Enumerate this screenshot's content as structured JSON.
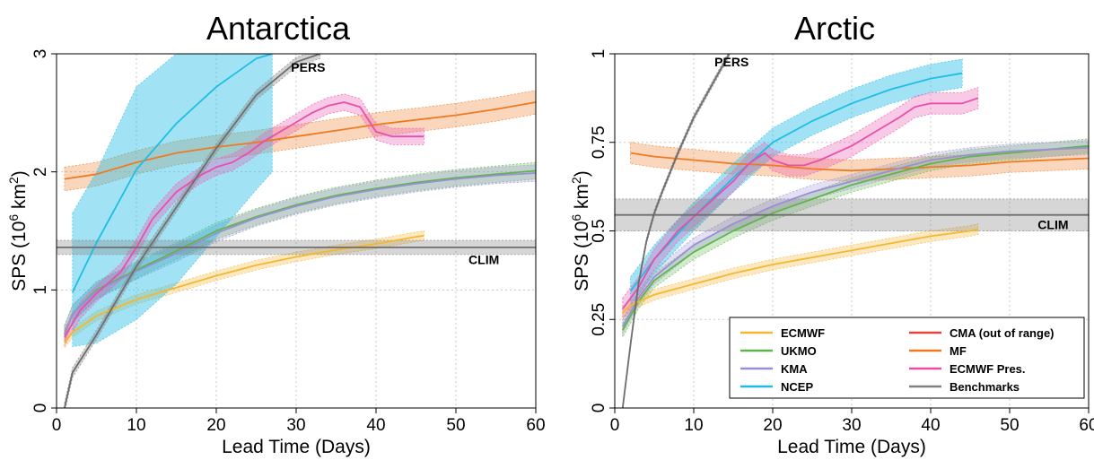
{
  "figure": {
    "xlabel": "Lead Time (Days)"
  },
  "colors": {
    "ECMWF": "#f5b731",
    "UKMO": "#5db64a",
    "KMA": "#9a8fd6",
    "NCEP": "#1fbde6",
    "CMA": "#e8423c",
    "MF": "#ef7a22",
    "ECMWF Pres.": "#ea4eac",
    "Benchmarks": "#808080"
  },
  "legend": {
    "entries": [
      {
        "label": "ECMWF",
        "color": "#f5b731"
      },
      {
        "label": "UKMO",
        "color": "#5db64a"
      },
      {
        "label": "KMA",
        "color": "#9a8fd6"
      },
      {
        "label": "NCEP",
        "color": "#1fbde6"
      },
      {
        "label": "CMA (out of range)",
        "color": "#e8423c"
      },
      {
        "label": "MF",
        "color": "#ef7a22"
      },
      {
        "label": "ECMWF Pres.",
        "color": "#ea4eac"
      },
      {
        "label": "Benchmarks",
        "color": "#808080"
      }
    ]
  },
  "chart_data": [
    {
      "type": "line",
      "title": "Antarctica",
      "xlabel": "Lead Time (Days)",
      "ylabel": "SPS (10^6 km^2)",
      "ylabel_parts": {
        "pre": "SPS (10",
        "exp": "6",
        "mid": " km",
        "exp2": "2",
        "post": ")"
      },
      "xlim": [
        0,
        60
      ],
      "ylim": [
        0,
        3
      ],
      "xticks": [
        0,
        10,
        20,
        30,
        40,
        50,
        60
      ],
      "xtick_labels": [
        "0",
        "10",
        "20",
        "30",
        "40",
        "50",
        "60"
      ],
      "yticks": [
        0,
        1,
        2,
        3
      ],
      "ytick_labels": [
        "0",
        "1",
        "2",
        "3"
      ],
      "grid": true,
      "annotations": [
        {
          "text": "PERS",
          "x": 31.5,
          "y": 2.85
        },
        {
          "text": "CLIM",
          "x": 53.5,
          "y": 1.22
        }
      ],
      "series": [
        {
          "name": "MF",
          "x": [
            1,
            5,
            10,
            15,
            20,
            25,
            30,
            35,
            40,
            45,
            50,
            55,
            60
          ],
          "y": [
            1.94,
            1.98,
            2.08,
            2.16,
            2.21,
            2.25,
            2.3,
            2.35,
            2.4,
            2.44,
            2.48,
            2.53,
            2.59
          ],
          "band": 0.1
        },
        {
          "name": "UKMO",
          "x": [
            1,
            2,
            5,
            10,
            15,
            20,
            25,
            30,
            35,
            40,
            45,
            50,
            55,
            60
          ],
          "y": [
            0.63,
            0.8,
            1.0,
            1.17,
            1.33,
            1.5,
            1.62,
            1.72,
            1.8,
            1.86,
            1.91,
            1.95,
            1.98,
            2.01
          ],
          "band": 0.07
        },
        {
          "name": "KMA",
          "x": [
            1,
            2,
            5,
            10,
            15,
            20,
            25,
            30,
            35,
            40,
            45,
            50,
            55,
            60
          ],
          "y": [
            0.62,
            0.8,
            0.99,
            1.16,
            1.31,
            1.48,
            1.61,
            1.71,
            1.79,
            1.85,
            1.9,
            1.94,
            1.97,
            1.99
          ],
          "band": 0.07
        },
        {
          "name": "ECMWF",
          "x": [
            1,
            2,
            5,
            10,
            15,
            20,
            25,
            30,
            35,
            40,
            45,
            46
          ],
          "y": [
            0.55,
            0.64,
            0.78,
            0.92,
            1.02,
            1.12,
            1.21,
            1.28,
            1.34,
            1.39,
            1.45,
            1.46
          ],
          "band": 0.04
        },
        {
          "name": "NCEP",
          "x": [
            2,
            5,
            10,
            15,
            20,
            25,
            27
          ],
          "y": [
            0.98,
            1.4,
            2.02,
            2.41,
            2.72,
            2.96,
            3.0
          ],
          "band_lo": [
            0.52,
            0.55,
            0.75,
            1.05,
            1.45,
            1.85,
            2.0
          ],
          "band_hi": [
            1.65,
            2.0,
            2.72,
            3.0,
            3.0,
            3.0,
            3.0
          ]
        },
        {
          "name": "ECMWF Pres.",
          "x": [
            1,
            3,
            5,
            8,
            10,
            12,
            15,
            18,
            20,
            22,
            24,
            26,
            28,
            30,
            32,
            34,
            36,
            38,
            40,
            42,
            44,
            46
          ],
          "y": [
            0.6,
            0.83,
            0.97,
            1.15,
            1.36,
            1.6,
            1.83,
            1.97,
            2.04,
            2.08,
            2.16,
            2.26,
            2.34,
            2.42,
            2.5,
            2.56,
            2.59,
            2.55,
            2.34,
            2.3,
            2.3,
            2.3
          ],
          "band": 0.07
        },
        {
          "name": "PERS",
          "x": [
            1,
            2,
            5,
            10,
            15,
            20,
            25,
            30,
            33
          ],
          "y": [
            0.0,
            0.3,
            0.62,
            1.2,
            1.7,
            2.2,
            2.65,
            2.93,
            3.0
          ],
          "band": 0.04
        },
        {
          "name": "CLIM",
          "x": [
            0,
            60
          ],
          "y": [
            1.36,
            1.36
          ],
          "band": 0.06
        }
      ]
    },
    {
      "type": "line",
      "title": "Arctic",
      "xlabel": "Lead Time (Days)",
      "ylabel": "SPS (10^6 km^2)",
      "ylabel_parts": {
        "pre": "SPS (10",
        "exp": "6",
        "mid": " km",
        "exp2": "2",
        "post": ")"
      },
      "xlim": [
        0,
        60
      ],
      "ylim": [
        0,
        1
      ],
      "xticks": [
        0,
        10,
        20,
        30,
        40,
        50,
        60
      ],
      "xtick_labels": [
        "0",
        "10",
        "20",
        "30",
        "40",
        "50",
        "60"
      ],
      "yticks": [
        0,
        0.25,
        0.5,
        0.75,
        1
      ],
      "ytick_labels": [
        "0",
        "0.25",
        "0.5",
        "0.75",
        "1"
      ],
      "grid": true,
      "legend_position": "bottom-right",
      "annotations": [
        {
          "text": "PERS",
          "x": 14.8,
          "y": 0.965
        },
        {
          "text": "CLIM",
          "x": 55.5,
          "y": 0.505
        }
      ],
      "series": [
        {
          "name": "MF",
          "x": [
            2,
            5,
            10,
            15,
            20,
            25,
            30,
            35,
            40,
            45,
            50,
            55,
            60
          ],
          "y": [
            0.72,
            0.71,
            0.7,
            0.69,
            0.685,
            0.675,
            0.67,
            0.675,
            0.68,
            0.685,
            0.695,
            0.7,
            0.705
          ],
          "band": 0.03
        },
        {
          "name": "UKMO",
          "x": [
            1,
            3,
            5,
            10,
            15,
            20,
            25,
            30,
            35,
            40,
            45,
            50,
            55,
            60
          ],
          "y": [
            0.22,
            0.3,
            0.36,
            0.44,
            0.5,
            0.55,
            0.59,
            0.63,
            0.66,
            0.69,
            0.71,
            0.72,
            0.73,
            0.74
          ],
          "band": 0.02
        },
        {
          "name": "KMA",
          "x": [
            1,
            3,
            5,
            10,
            15,
            20,
            25,
            30,
            35,
            40,
            45,
            50,
            55,
            60
          ],
          "y": [
            0.23,
            0.31,
            0.37,
            0.46,
            0.52,
            0.57,
            0.61,
            0.64,
            0.67,
            0.7,
            0.715,
            0.725,
            0.73,
            0.735
          ],
          "band": 0.02
        },
        {
          "name": "ECMWF",
          "x": [
            1,
            2,
            5,
            10,
            15,
            20,
            25,
            30,
            35,
            40,
            45,
            46
          ],
          "y": [
            0.27,
            0.29,
            0.32,
            0.35,
            0.38,
            0.405,
            0.425,
            0.445,
            0.465,
            0.485,
            0.5,
            0.505
          ],
          "band": 0.015
        },
        {
          "name": "NCEP",
          "x": [
            2,
            5,
            10,
            15,
            20,
            25,
            30,
            35,
            40,
            44
          ],
          "y": [
            0.33,
            0.42,
            0.54,
            0.65,
            0.75,
            0.81,
            0.86,
            0.9,
            0.93,
            0.945
          ],
          "band": 0.04
        },
        {
          "name": "ECMWF Pres.",
          "x": [
            1,
            3,
            5,
            8,
            10,
            12,
            15,
            17,
            18,
            19,
            20,
            22,
            24,
            26,
            28,
            30,
            33,
            36,
            38,
            40,
            42,
            44,
            46
          ],
          "y": [
            0.28,
            0.34,
            0.42,
            0.5,
            0.54,
            0.58,
            0.64,
            0.69,
            0.705,
            0.72,
            0.7,
            0.685,
            0.685,
            0.7,
            0.72,
            0.74,
            0.78,
            0.82,
            0.85,
            0.86,
            0.86,
            0.86,
            0.875
          ],
          "band": 0.03
        },
        {
          "name": "PERS",
          "x": [
            1,
            2,
            3,
            4,
            5,
            6,
            8,
            10,
            12,
            14.5
          ],
          "y": [
            0.0,
            0.18,
            0.35,
            0.47,
            0.55,
            0.61,
            0.72,
            0.82,
            0.9,
            1.0
          ],
          "band": 0.008
        },
        {
          "name": "CLIM",
          "x": [
            0,
            60
          ],
          "y": [
            0.545,
            0.545
          ],
          "band": 0.045
        }
      ]
    }
  ]
}
